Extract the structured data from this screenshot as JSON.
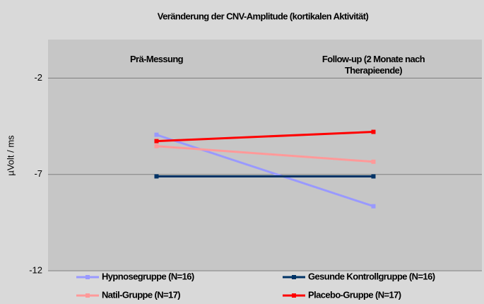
{
  "chart_data": {
    "type": "line",
    "title": "Veränderung der CNV-Amplitude (kortikalen Aktivität)",
    "y_label": "µVolt / ms",
    "categories": [
      "Prä-Messung",
      "Follow-up (2 Monate nach Therapieende)"
    ],
    "series": [
      {
        "name": "Hypnosegruppe (N=16)",
        "color": "#9999ff",
        "values": [
          -4.94,
          -8.65
        ]
      },
      {
        "name": "Gesunde Kontrollgruppe (N=16)",
        "color": "#003366",
        "values": [
          -7.1,
          -7.1
        ]
      },
      {
        "name": "Natil-Gruppe (N=17)",
        "color": "#ff9999",
        "values": [
          -5.53,
          -6.34
        ]
      },
      {
        "name": "Placebo-Gruppe (N=17)",
        "color": "#ff0000",
        "values": [
          -5.27,
          -4.79
        ]
      }
    ],
    "ylim": [
      -12,
      0
    ],
    "yticks": [
      -2,
      -7,
      -12
    ],
    "grid": true,
    "legend": "bottom"
  }
}
